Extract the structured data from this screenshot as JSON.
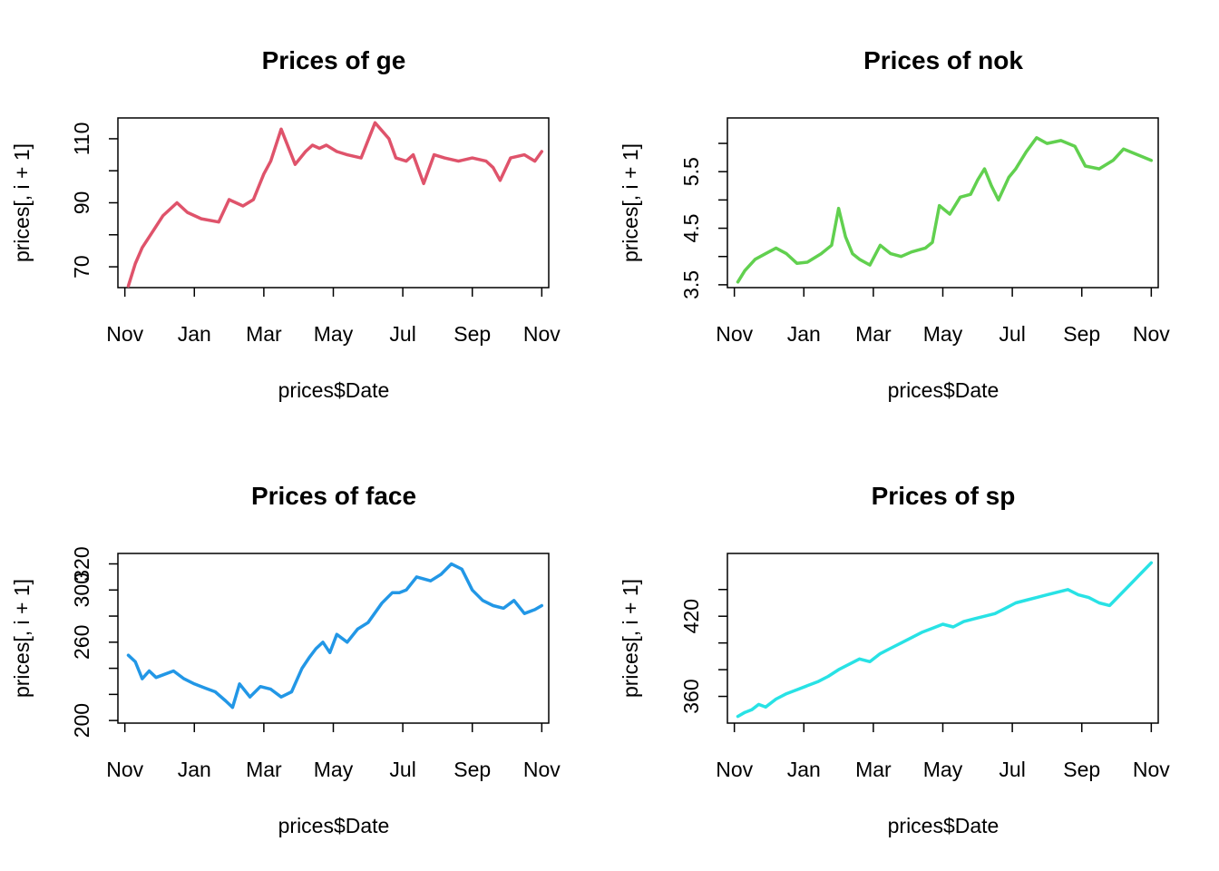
{
  "chart_data": [
    {
      "type": "line",
      "title": "Prices of ge",
      "xlabel": "prices$Date",
      "ylabel": "prices[, i + 1]",
      "color": "#DF536B",
      "x_ticks": [
        "Nov",
        "Jan",
        "Mar",
        "May",
        "Jul",
        "Sep",
        "Nov"
      ],
      "y_ticks": [
        70,
        80,
        90,
        100,
        110
      ],
      "y_tick_labels": [
        "70",
        "",
        "90",
        "",
        "110"
      ],
      "ylim": [
        63.5,
        116.5
      ],
      "x_months_range": [
        -0.2,
        12.2
      ],
      "series": [
        {
          "name": "ge",
          "x": [
            0.1,
            0.3,
            0.5,
            0.8,
            1.1,
            1.5,
            1.8,
            2.2,
            2.7,
            3.0,
            3.4,
            3.7,
            4.0,
            4.2,
            4.5,
            4.9,
            5.2,
            5.4,
            5.6,
            5.8,
            6.1,
            6.4,
            6.8,
            7.2,
            7.6,
            7.8,
            8.1,
            8.3,
            8.6,
            8.9,
            9.2,
            9.6,
            10.0,
            10.4,
            10.6,
            10.8,
            11.1,
            11.5,
            11.8,
            12.0
          ],
          "values": [
            64,
            71,
            76,
            81,
            86,
            90,
            87,
            85,
            84,
            91,
            89,
            91,
            99,
            103,
            113,
            102,
            106,
            108,
            107,
            108,
            106,
            105,
            104,
            115,
            110,
            104,
            103,
            105,
            96,
            105,
            104,
            103,
            104,
            103,
            101,
            97,
            104,
            105,
            103,
            106
          ]
        }
      ]
    },
    {
      "type": "line",
      "title": "Prices of nok",
      "xlabel": "prices$Date",
      "ylabel": "prices[, i + 1]",
      "color": "#61D04F",
      "x_ticks": [
        "Nov",
        "Jan",
        "Mar",
        "May",
        "Jul",
        "Sep",
        "Nov"
      ],
      "y_ticks": [
        3.5,
        4.0,
        4.5,
        5.0,
        5.5,
        6.0
      ],
      "y_tick_labels": [
        "3.5",
        "",
        "4.5",
        "",
        "5.5",
        ""
      ],
      "ylim": [
        3.45,
        6.45
      ],
      "x_months_range": [
        -0.2,
        12.2
      ],
      "series": [
        {
          "name": "nok",
          "x": [
            0.1,
            0.3,
            0.6,
            0.9,
            1.2,
            1.5,
            1.8,
            2.1,
            2.5,
            2.8,
            3.0,
            3.2,
            3.4,
            3.6,
            3.9,
            4.2,
            4.5,
            4.8,
            5.1,
            5.5,
            5.7,
            5.9,
            6.2,
            6.5,
            6.8,
            7.0,
            7.2,
            7.4,
            7.6,
            7.9,
            8.1,
            8.4,
            8.7,
            9.0,
            9.4,
            9.8,
            10.1,
            10.5,
            10.9,
            11.2,
            11.6,
            12.0
          ],
          "values": [
            3.55,
            3.75,
            3.95,
            4.05,
            4.15,
            4.05,
            3.88,
            3.9,
            4.05,
            4.2,
            4.85,
            4.35,
            4.05,
            3.95,
            3.85,
            4.2,
            4.05,
            4.0,
            4.08,
            4.15,
            4.25,
            4.9,
            4.75,
            5.05,
            5.1,
            5.35,
            5.55,
            5.25,
            5.0,
            5.4,
            5.55,
            5.85,
            6.1,
            6.0,
            6.05,
            5.95,
            5.6,
            5.55,
            5.7,
            5.9,
            5.8,
            5.7
          ]
        }
      ]
    },
    {
      "type": "line",
      "title": "Prices of face",
      "xlabel": "prices$Date",
      "ylabel": "prices[, i + 1]",
      "color": "#2297E6",
      "x_ticks": [
        "Nov",
        "Jan",
        "Mar",
        "May",
        "Jul",
        "Sep",
        "Nov"
      ],
      "y_ticks": [
        200,
        220,
        240,
        260,
        280,
        300,
        320
      ],
      "y_tick_labels": [
        "200",
        "",
        "",
        "260",
        "",
        "300",
        "320"
      ],
      "ylim": [
        198,
        328
      ],
      "x_months_range": [
        -0.2,
        12.2
      ],
      "series": [
        {
          "name": "face",
          "x": [
            0.1,
            0.3,
            0.5,
            0.7,
            0.9,
            1.1,
            1.4,
            1.7,
            2.0,
            2.3,
            2.6,
            2.9,
            3.1,
            3.3,
            3.6,
            3.9,
            4.2,
            4.5,
            4.8,
            5.1,
            5.3,
            5.5,
            5.7,
            5.9,
            6.1,
            6.4,
            6.7,
            7.0,
            7.4,
            7.7,
            7.9,
            8.1,
            8.4,
            8.8,
            9.1,
            9.4,
            9.7,
            10.0,
            10.3,
            10.6,
            10.9,
            11.2,
            11.5,
            11.8,
            12.0
          ],
          "values": [
            250,
            245,
            232,
            238,
            233,
            235,
            238,
            232,
            228,
            225,
            222,
            215,
            210,
            228,
            218,
            226,
            224,
            218,
            222,
            240,
            248,
            255,
            260,
            252,
            266,
            260,
            270,
            275,
            290,
            298,
            298,
            300,
            310,
            307,
            312,
            320,
            316,
            300,
            292,
            288,
            286,
            292,
            282,
            285,
            288
          ]
        }
      ]
    },
    {
      "type": "line",
      "title": "Prices of sp",
      "xlabel": "prices$Date",
      "ylabel": "prices[, i + 1]",
      "color": "#28E2E5",
      "x_ticks": [
        "Nov",
        "Jan",
        "Mar",
        "May",
        "Jul",
        "Sep",
        "Nov"
      ],
      "y_ticks": [
        360,
        380,
        400,
        420,
        440
      ],
      "y_tick_labels": [
        "360",
        "",
        "",
        "420",
        ""
      ],
      "ylim": [
        340,
        467
      ],
      "x_months_range": [
        -0.2,
        12.2
      ],
      "series": [
        {
          "name": "sp",
          "x": [
            0.1,
            0.3,
            0.5,
            0.7,
            0.9,
            1.2,
            1.5,
            1.8,
            2.1,
            2.4,
            2.7,
            3.0,
            3.3,
            3.6,
            3.9,
            4.2,
            4.5,
            4.8,
            5.1,
            5.4,
            5.7,
            6.0,
            6.3,
            6.6,
            6.9,
            7.2,
            7.5,
            7.8,
            8.1,
            8.4,
            8.7,
            9.0,
            9.3,
            9.6,
            9.9,
            10.2,
            10.5,
            10.8,
            11.1,
            11.4,
            11.7,
            12.0
          ],
          "values": [
            345,
            348,
            350,
            354,
            352,
            358,
            362,
            365,
            368,
            371,
            375,
            380,
            384,
            388,
            386,
            392,
            396,
            400,
            404,
            408,
            411,
            414,
            412,
            416,
            418,
            420,
            422,
            426,
            430,
            432,
            434,
            436,
            438,
            440,
            436,
            434,
            430,
            428,
            436,
            444,
            452,
            460
          ]
        }
      ]
    }
  ]
}
